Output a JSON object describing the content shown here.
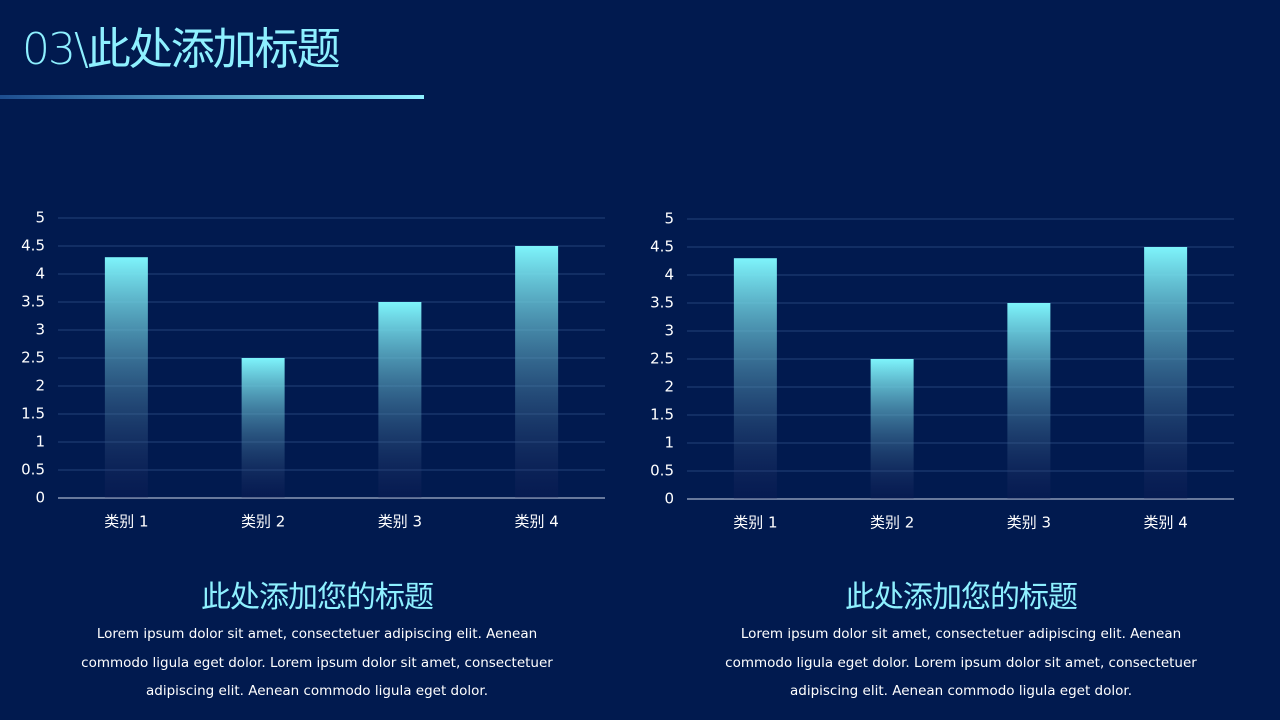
{
  "header": {
    "title": "03\\此处添加标题"
  },
  "chart_data": [
    {
      "type": "bar",
      "categories": [
        "类别 1",
        "类别 2",
        "类别 3",
        "类别 4"
      ],
      "values": [
        4.3,
        2.5,
        3.5,
        4.5
      ],
      "color": "#7ef4fb",
      "ylim": [
        0,
        5
      ],
      "yticks": [
        0,
        0.5,
        1,
        1.5,
        2,
        2.5,
        3,
        3.5,
        4,
        4.5,
        5
      ],
      "grid": true
    },
    {
      "type": "bar",
      "categories": [
        "类别 1",
        "类别 2",
        "类别 3",
        "类别 4"
      ],
      "values": [
        4.3,
        2.5,
        3.5,
        4.5
      ],
      "color": "#7ef4fb",
      "ylim": [
        0,
        5
      ],
      "yticks": [
        0,
        0.5,
        1,
        1.5,
        2,
        2.5,
        3,
        3.5,
        4,
        4.5,
        5
      ],
      "grid": true
    }
  ],
  "captions": [
    {
      "title": "此处添加您的标题",
      "body": "Lorem ipsum dolor sit amet, consectetuer adipiscing elit. Aenean commodo ligula eget dolor. Lorem ipsum dolor sit amet, consectetuer adipiscing elit. Aenean commodo ligula eget dolor."
    },
    {
      "title": "此处添加您的标题",
      "body": "Lorem ipsum dolor sit amet, consectetuer adipiscing elit. Aenean commodo ligula eget dolor. Lorem ipsum dolor sit amet, consectetuer adipiscing elit. Aenean commodo ligula eget dolor."
    }
  ]
}
